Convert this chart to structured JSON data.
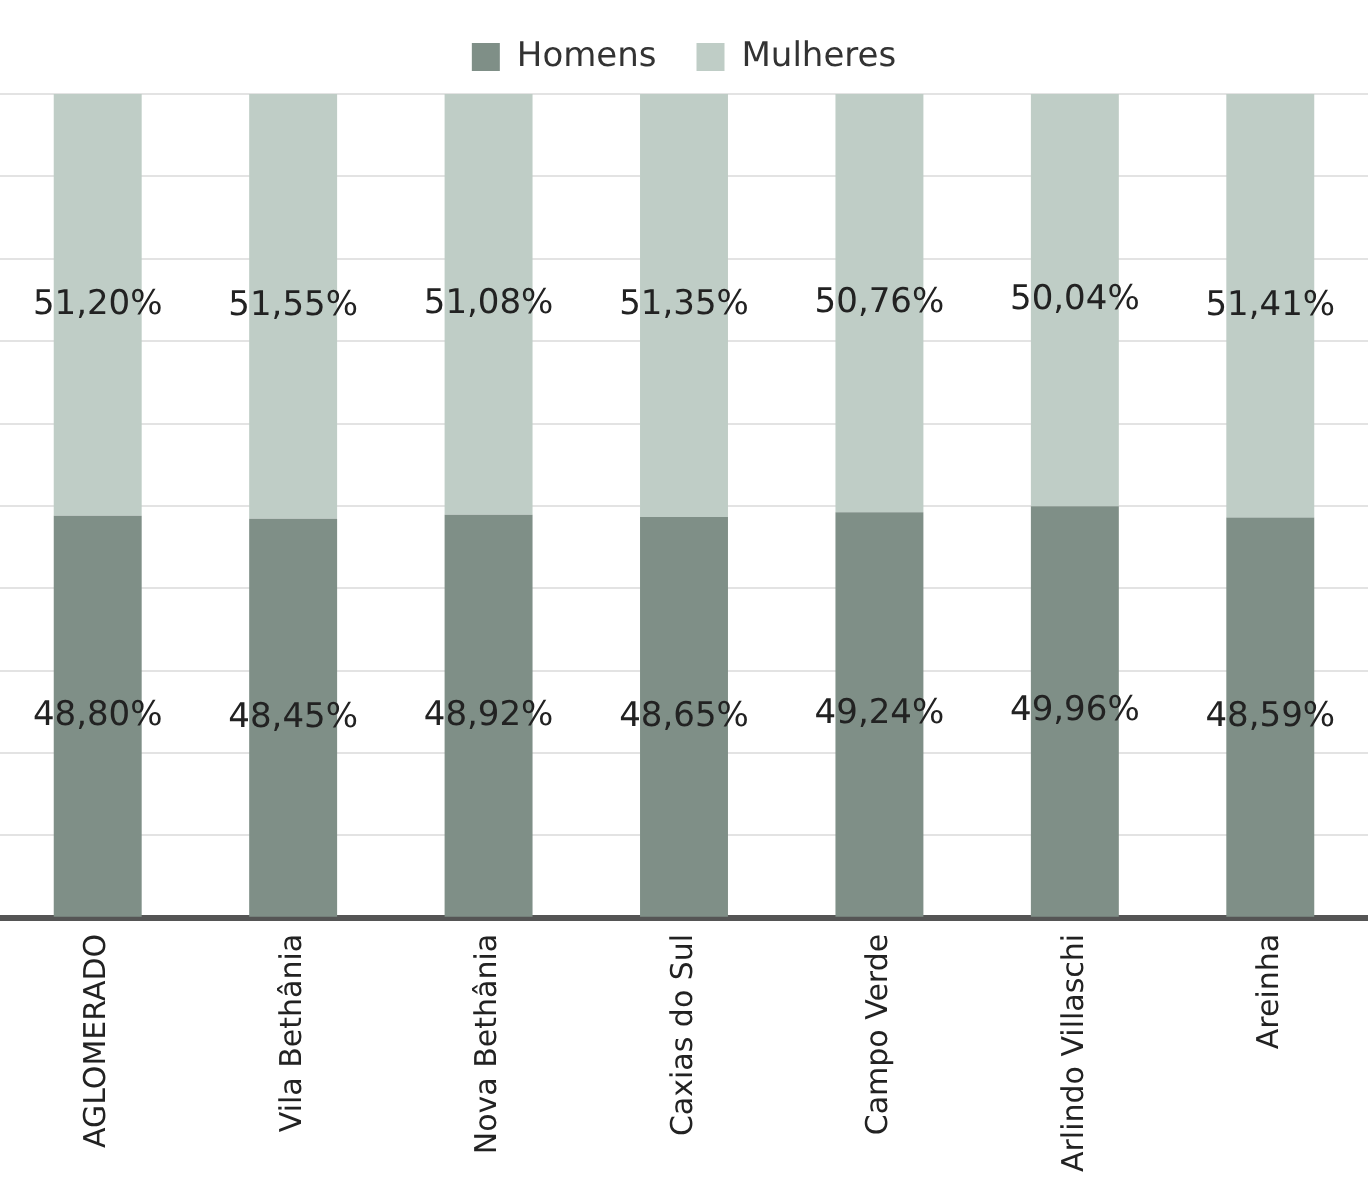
{
  "chart_data": {
    "type": "bar",
    "stacked": true,
    "categories": [
      "AGLOMERADO",
      "Vila Bethânia",
      "Nova Bethânia",
      "Caxias do Sul",
      "Campo Verde",
      "Arlindo Villaschi",
      "Areinha"
    ],
    "series": [
      {
        "name": "Homens",
        "color": "#7f8f87",
        "values": [
          48.8,
          48.45,
          48.92,
          48.65,
          49.24,
          49.96,
          48.59
        ],
        "value_labels": [
          "48,80%",
          "48,45%",
          "48,92%",
          "48,65%",
          "49,24%",
          "49,96%",
          "48,59%"
        ]
      },
      {
        "name": "Mulheres",
        "color": "#bfcdc6",
        "values": [
          51.2,
          51.55,
          51.08,
          51.35,
          50.76,
          50.04,
          51.41
        ],
        "value_labels": [
          "51,20%",
          "51,55%",
          "51,08%",
          "51,35%",
          "50,76%",
          "50,04%",
          "51,41%"
        ]
      }
    ],
    "ylim": [
      0,
      100
    ],
    "yticks": [
      {
        "value": 0,
        "label": null
      },
      {
        "value": 10,
        "label": null
      },
      {
        "value": 20,
        "label": null
      },
      {
        "value": 30,
        "label": null
      },
      {
        "value": 40,
        "label": null
      },
      {
        "value": 50,
        "label": null
      },
      {
        "value": 60,
        "label": null
      },
      {
        "value": 70,
        "label": null
      },
      {
        "value": 80,
        "label": null
      },
      {
        "value": 90,
        "label": null
      },
      {
        "value": 100,
        "label": null
      }
    ],
    "tick_labels": "x",
    "grid": "y",
    "legend": "top"
  }
}
